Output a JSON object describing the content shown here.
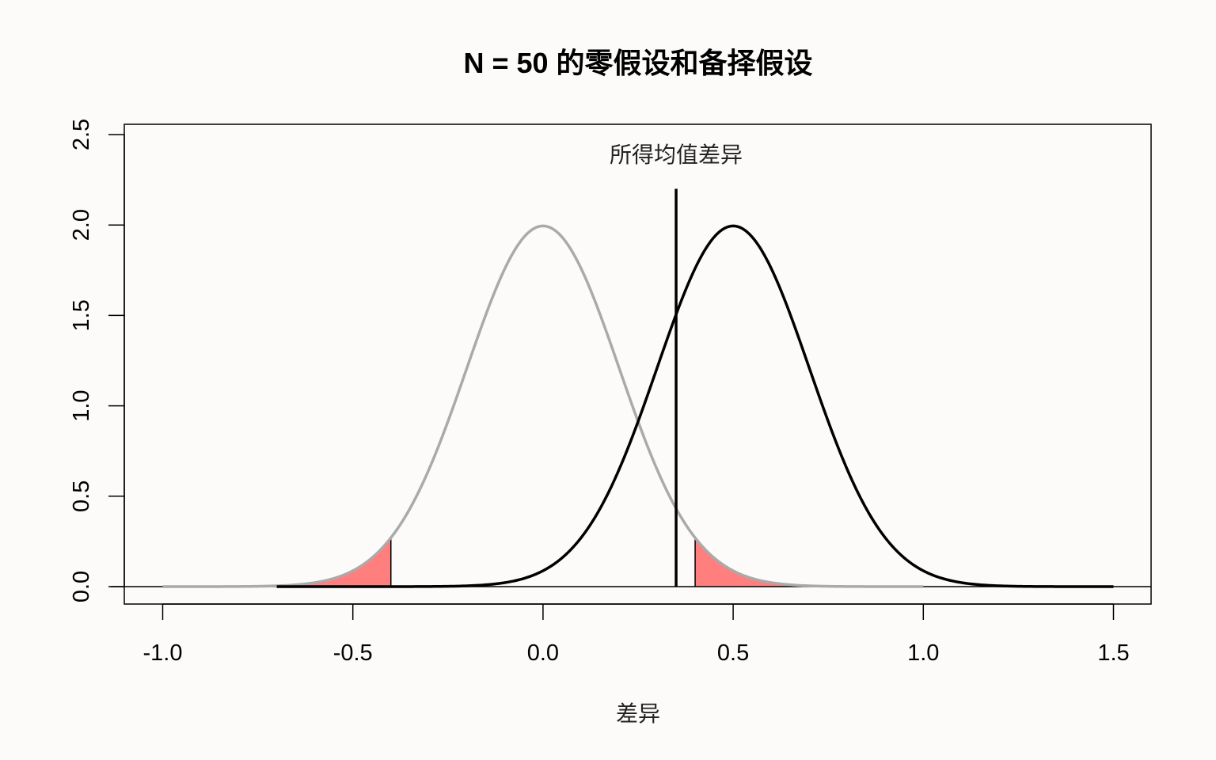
{
  "chart_data": {
    "type": "line",
    "title": "N = 50 的零假设和备择假设",
    "xlabel": "差异",
    "ylabel": "",
    "xlim": [
      -1.0,
      1.5
    ],
    "ylim": [
      0,
      2.5
    ],
    "x_ticks": [
      "-1.0",
      "-0.5",
      "0.0",
      "0.5",
      "1.0",
      "1.5"
    ],
    "y_ticks": [
      "0.0",
      "0.5",
      "1.0",
      "1.5",
      "2.0",
      "2.5"
    ],
    "grid": false,
    "series": [
      {
        "role": "null",
        "mean": 0.0,
        "sd": 0.2,
        "x_range": [
          -1.0,
          1.0
        ],
        "color": "#aaaaaa"
      },
      {
        "role": "alternative",
        "mean": 0.5,
        "sd": 0.2,
        "x_range": [
          -0.7,
          1.5
        ],
        "color": "#000000"
      }
    ],
    "rejection_regions": [
      {
        "x_from": -1.0,
        "x_to": -0.4,
        "color": "#ff7f7f"
      },
      {
        "x_from": 0.4,
        "x_to": 1.0,
        "color": "#ff7f7f"
      }
    ],
    "observed_difference": {
      "x": 0.35,
      "y_top": 2.2,
      "label": "所得均值差异"
    }
  }
}
